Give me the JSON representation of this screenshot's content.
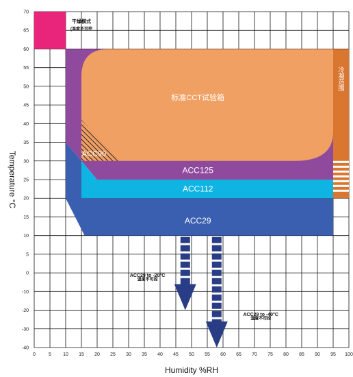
{
  "chart_data": {
    "type": "area",
    "xlabel": "Humidity %RH",
    "ylabel": "Temperature °C",
    "xlim": [
      0,
      100
    ],
    "ylim": [
      -40,
      70
    ],
    "x_ticks": [
      0,
      5,
      10,
      15,
      20,
      25,
      30,
      35,
      40,
      45,
      50,
      55,
      60,
      65,
      70,
      75,
      80,
      85,
      90,
      95,
      100
    ],
    "y_ticks": [
      -40,
      -30,
      -20,
      -10,
      0,
      5,
      10,
      15,
      20,
      25,
      30,
      35,
      40,
      45,
      50,
      55,
      60,
      65,
      70
    ],
    "grid": true,
    "zones": [
      {
        "id": "dry-mode",
        "label": "干燥模式",
        "color": "#e8257a"
      },
      {
        "id": "dry-mode-note",
        "label": "(温度不可控"
      },
      {
        "id": "acc29",
        "label": "ACC29",
        "color": "#3a5fb0"
      },
      {
        "id": "acc112",
        "label": "ACC112",
        "color": "#10b4e3"
      },
      {
        "id": "acc125",
        "label": "ACC125",
        "color": "#8f4a9e"
      },
      {
        "id": "acc90",
        "label": "ACC90",
        "color": "#8f4a9e"
      },
      {
        "id": "standard",
        "label": "标准CCT试验箱",
        "color": "#f0a062"
      },
      {
        "id": "cold-zone",
        "label": "冷凝范围",
        "color": "#d9762f"
      }
    ],
    "arrows": [
      {
        "label": "ACC29 to -20°C",
        "sublabel": "温度不可控",
        "x": 48,
        "y_from": 10,
        "y_to": -20,
        "color": "#283d85"
      },
      {
        "label": "ACC29 to -40°C",
        "sublabel": "温度不可控",
        "x": 58,
        "y_from": 10,
        "y_to": -40,
        "color": "#283d85"
      }
    ]
  }
}
